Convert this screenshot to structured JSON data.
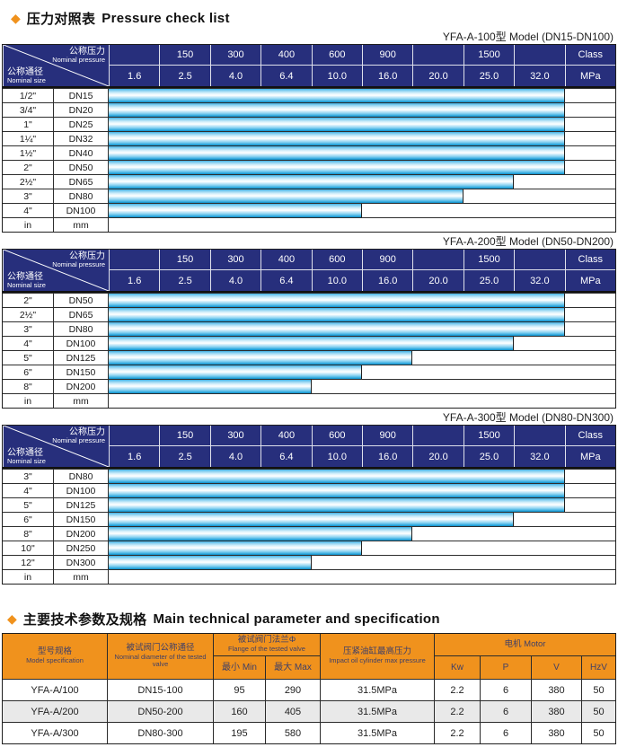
{
  "colors": {
    "navy_header": "#272f7c",
    "orange_header": "#f0921d",
    "bar_blue": "#29a8dd",
    "alt_row_gray": "#e9e9e9"
  },
  "section_pressure": {
    "bullet": "◆",
    "title_zh": "压力对照表",
    "title_en": "Pressure check list"
  },
  "pressure_header": {
    "diagonal": {
      "top_zh": "公称压力",
      "top_en": "Nominal pressure",
      "bottom_zh": "公称通径",
      "bottom_en": "Nominal size"
    },
    "class_row": [
      "",
      "150",
      "300",
      "400",
      "600",
      "900",
      "",
      "1500",
      "",
      "Class"
    ],
    "mpa_row": [
      "1.6",
      "2.5",
      "4.0",
      "6.4",
      "10.0",
      "16.0",
      "20.0",
      "25.0",
      "32.0",
      "MPa"
    ],
    "bars_range_from_mpa": "1.6"
  },
  "pressure_tables": [
    {
      "title": "YFA-A-100型  Model (DN15-DN100)",
      "rows": [
        {
          "inch": "1/2\"",
          "dn": "DN15",
          "bar_cols": 9,
          "max_mpa": "32.0"
        },
        {
          "inch": "3/4\"",
          "dn": "DN20",
          "bar_cols": 9,
          "max_mpa": "32.0"
        },
        {
          "inch": "1\"",
          "dn": "DN25",
          "bar_cols": 9,
          "max_mpa": "32.0"
        },
        {
          "inch": "1¼\"",
          "dn": "DN32",
          "bar_cols": 9,
          "max_mpa": "32.0"
        },
        {
          "inch": "1½\"",
          "dn": "DN40",
          "bar_cols": 9,
          "max_mpa": "32.0"
        },
        {
          "inch": "2\"",
          "dn": "DN50",
          "bar_cols": 9,
          "max_mpa": "32.0"
        },
        {
          "inch": "2½\"",
          "dn": "DN65",
          "bar_cols": 8,
          "max_mpa": "25.0"
        },
        {
          "inch": "3\"",
          "dn": "DN80",
          "bar_cols": 7,
          "max_mpa": "20.0"
        },
        {
          "inch": "4\"",
          "dn": "DN100",
          "bar_cols": 5,
          "max_mpa": "10.0"
        }
      ],
      "unit_row": {
        "inch": "in",
        "dn": "mm"
      }
    },
    {
      "title": "YFA-A-200型  Model (DN50-DN200)",
      "rows": [
        {
          "inch": "2\"",
          "dn": "DN50",
          "bar_cols": 9,
          "max_mpa": "32.0"
        },
        {
          "inch": "2½\"",
          "dn": "DN65",
          "bar_cols": 9,
          "max_mpa": "32.0"
        },
        {
          "inch": "3\"",
          "dn": "DN80",
          "bar_cols": 9,
          "max_mpa": "32.0"
        },
        {
          "inch": "4\"",
          "dn": "DN100",
          "bar_cols": 8,
          "max_mpa": "25.0"
        },
        {
          "inch": "5\"",
          "dn": "DN125",
          "bar_cols": 6,
          "max_mpa": "16.0"
        },
        {
          "inch": "6\"",
          "dn": "DN150",
          "bar_cols": 5,
          "max_mpa": "10.0"
        },
        {
          "inch": "8\"",
          "dn": "DN200",
          "bar_cols": 4,
          "max_mpa": "6.4"
        }
      ],
      "unit_row": {
        "inch": "in",
        "dn": "mm"
      }
    },
    {
      "title": "YFA-A-300型  Model (DN80-DN300)",
      "rows": [
        {
          "inch": "3\"",
          "dn": "DN80",
          "bar_cols": 9,
          "max_mpa": "32.0"
        },
        {
          "inch": "4\"",
          "dn": "DN100",
          "bar_cols": 9,
          "max_mpa": "32.0"
        },
        {
          "inch": "5\"",
          "dn": "DN125",
          "bar_cols": 9,
          "max_mpa": "32.0"
        },
        {
          "inch": "6\"",
          "dn": "DN150",
          "bar_cols": 8,
          "max_mpa": "25.0"
        },
        {
          "inch": "8\"",
          "dn": "DN200",
          "bar_cols": 6,
          "max_mpa": "16.0"
        },
        {
          "inch": "10\"",
          "dn": "DN250",
          "bar_cols": 5,
          "max_mpa": "10.0"
        },
        {
          "inch": "12\"",
          "dn": "DN300",
          "bar_cols": 4,
          "max_mpa": "6.4"
        }
      ],
      "unit_row": {
        "inch": "in",
        "dn": "mm"
      }
    }
  ],
  "section_spec": {
    "bullet": "◆",
    "title_zh": "主要技术参数及规格",
    "title_en": "Main technical parameter and specification"
  },
  "spec_table": {
    "col_model": {
      "zh": "型号规格",
      "en": "Model specification"
    },
    "col_diameter": {
      "zh": "被试阀门公称通径",
      "en": "Nominal diameter of the tested valve"
    },
    "col_flange": {
      "zh": "被试阀门法兰Φ",
      "en": "Flange of the tested valve",
      "sub_min": "最小 Min",
      "sub_max": "最大 Max"
    },
    "col_pressure": {
      "zh": "压紧油缸最高压力",
      "en": "Impact oil cylinder max pressure"
    },
    "col_motor": {
      "zh": "电机",
      "en": "Motor",
      "subs": [
        "Kw",
        "P",
        "V",
        "HzV"
      ]
    },
    "rows": [
      [
        "YFA-A/100",
        "DN15-100",
        "95",
        "290",
        "31.5MPa",
        "2.2",
        "6",
        "380",
        "50"
      ],
      [
        "YFA-A/200",
        "DN50-200",
        "160",
        "405",
        "31.5MPa",
        "2.2",
        "6",
        "380",
        "50"
      ],
      [
        "YFA-A/300",
        "DN80-300",
        "195",
        "580",
        "31.5MPa",
        "2.2",
        "6",
        "380",
        "50"
      ]
    ]
  }
}
